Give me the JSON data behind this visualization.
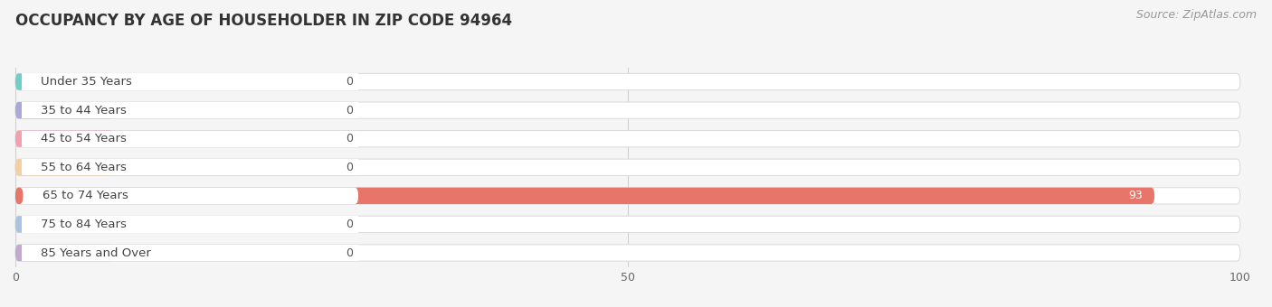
{
  "title": "OCCUPANCY BY AGE OF HOUSEHOLDER IN ZIP CODE 94964",
  "source": "Source: ZipAtlas.com",
  "categories": [
    "Under 35 Years",
    "35 to 44 Years",
    "45 to 54 Years",
    "55 to 64 Years",
    "65 to 74 Years",
    "75 to 84 Years",
    "85 Years and Over"
  ],
  "values": [
    0,
    0,
    0,
    0,
    93,
    0,
    0
  ],
  "bar_colors": [
    "#6ecfca",
    "#a9a8d8",
    "#f2a0b0",
    "#f5cfa0",
    "#e8756a",
    "#a8c4e0",
    "#c4a8d0"
  ],
  "background_color": "#f5f5f5",
  "bar_bg_color": "#ffffff",
  "bar_outline_color": "#dddddd",
  "xlim": [
    0,
    100
  ],
  "xticks": [
    0,
    50,
    100
  ],
  "title_fontsize": 12,
  "source_fontsize": 9,
  "label_fontsize": 9.5,
  "value_fontsize": 9
}
